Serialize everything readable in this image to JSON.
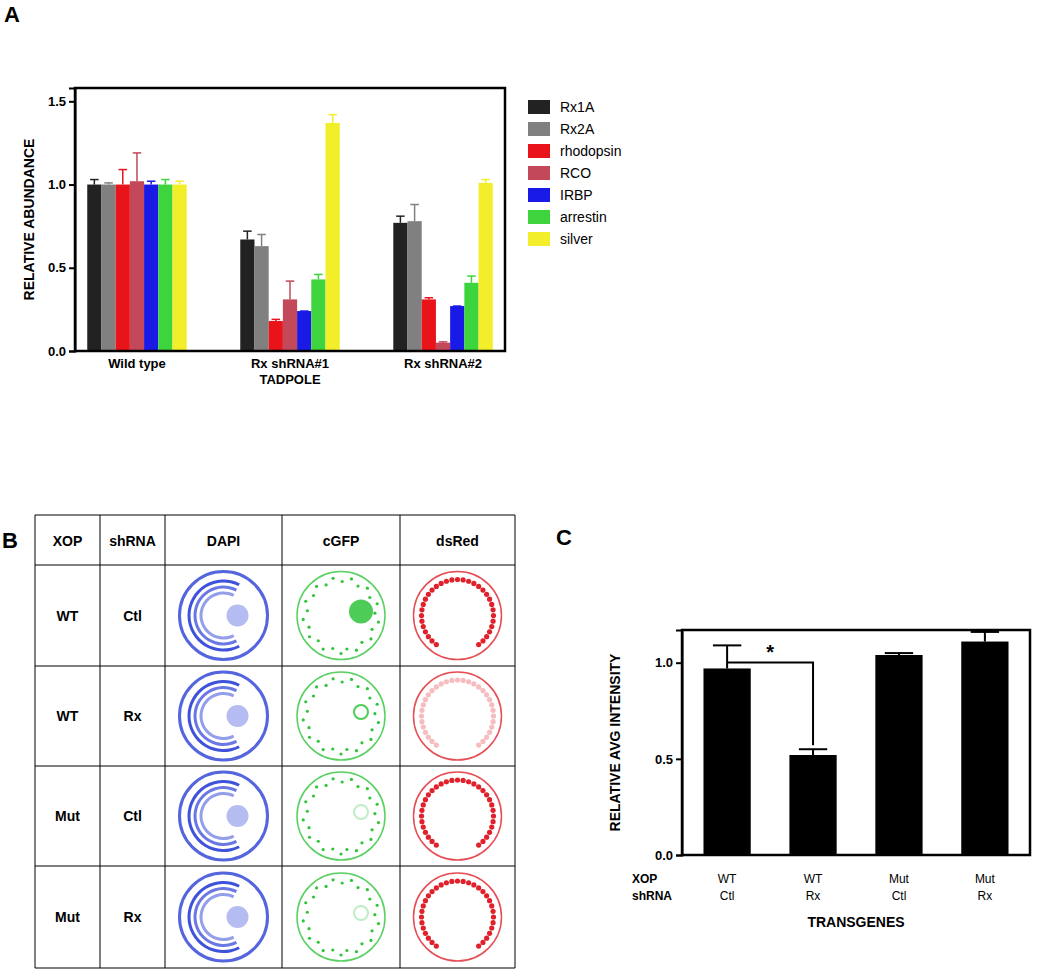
{
  "chart_data": [
    {
      "type": "bar",
      "panel": "A",
      "y_label": "RELATIVE ABUNDANCE",
      "x_label": "TADPOLE",
      "categories": [
        "Wild type",
        "Rx shRNA#1",
        "Rx shRNA#2"
      ],
      "ylim": [
        0,
        1.58
      ],
      "yticks": [
        {
          "value": 0,
          "label": "0.0"
        },
        {
          "value": 0.5,
          "label": "0.5"
        },
        {
          "value": 1,
          "label": "1.0"
        },
        {
          "value": 1.5,
          "label": "1.5"
        }
      ],
      "legend": "right",
      "series": [
        {
          "name": "Rx1A",
          "color": "#222222",
          "values": [
            1.0,
            0.67,
            0.77
          ],
          "errors": [
            0.03,
            0.05,
            0.04
          ]
        },
        {
          "name": "Rx2A",
          "color": "#808080",
          "values": [
            1.0,
            0.63,
            0.78
          ],
          "errors": [
            0.01,
            0.07,
            0.1
          ]
        },
        {
          "name": "rhodopsin",
          "color": "#e8141a",
          "values": [
            1.0,
            0.18,
            0.31
          ],
          "errors": [
            0.09,
            0.01,
            0.01
          ]
        },
        {
          "name": "RCO",
          "color": "#c2485a",
          "values": [
            1.02,
            0.31,
            0.05
          ],
          "errors": [
            0.17,
            0.11,
            0.005
          ]
        },
        {
          "name": "IRBP",
          "color": "#1a1ae6",
          "values": [
            1.0,
            0.24,
            0.27
          ],
          "errors": [
            0.02,
            0.0,
            0.0
          ]
        },
        {
          "name": "arrestin",
          "color": "#3dd43d",
          "values": [
            1.0,
            0.43,
            0.41
          ],
          "errors": [
            0.03,
            0.03,
            0.04
          ]
        },
        {
          "name": "silver",
          "color": "#f2ee2a",
          "values": [
            1.0,
            1.37,
            1.01
          ],
          "errors": [
            0.02,
            0.05,
            0.02
          ]
        }
      ]
    },
    {
      "type": "bar",
      "panel": "C",
      "y_label": "RELATIVE AVG INTENSITY",
      "x_label": "TRANSGENES",
      "category_row_labels": [
        "XOP",
        "shRNA"
      ],
      "categories": [
        "WT",
        "WT",
        "Mut",
        "Mut"
      ],
      "categories_2": [
        "Ctl",
        "Rx",
        "Ctl",
        "Rx"
      ],
      "ylim": [
        0,
        1.17
      ],
      "yticks": [
        {
          "value": 0,
          "label": "0.0"
        },
        {
          "value": 0.5,
          "label": "0.5"
        },
        {
          "value": 1,
          "label": "1.0"
        }
      ],
      "color": "#000000",
      "values": [
        0.97,
        0.52,
        1.04,
        1.11
      ],
      "errors": [
        0.12,
        0.03,
        0.01,
        0.05
      ],
      "annotations": [
        {
          "text": "*",
          "from": 0,
          "to": 1
        }
      ]
    }
  ],
  "panel_b": {
    "panel": "B",
    "header": [
      "XOP",
      "shRNA",
      "DAPI",
      "cGFP",
      "dsRed"
    ],
    "rows": [
      [
        "WT",
        "Ctl"
      ],
      [
        "WT",
        "Rx"
      ],
      [
        "Mut",
        "Ctl"
      ],
      [
        "Mut",
        "Rx"
      ]
    ]
  }
}
